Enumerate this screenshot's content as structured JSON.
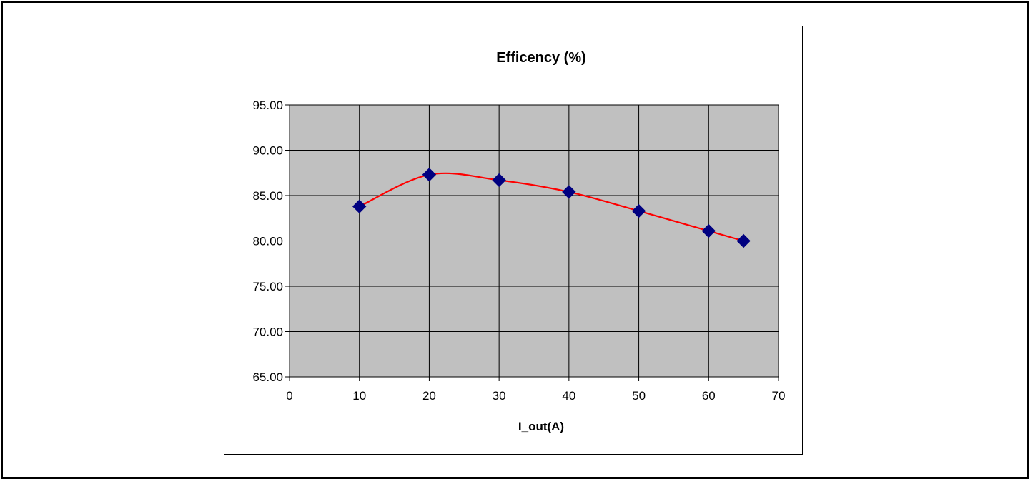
{
  "chart_data": {
    "type": "scatter",
    "title": "Efficency (%)",
    "xlabel": "I_out(A)",
    "ylabel": "",
    "xlim": [
      0,
      70
    ],
    "ylim": [
      65,
      95
    ],
    "x_ticks": [
      "0",
      "10",
      "20",
      "30",
      "40",
      "50",
      "60",
      "70"
    ],
    "y_ticks": [
      "95.00",
      "90.00",
      "85.00",
      "80.00",
      "75.00",
      "70.00",
      "65.00"
    ],
    "grid": true,
    "legend": "none",
    "series": [
      {
        "x": [
          10,
          20,
          30,
          40,
          50,
          60,
          65
        ],
        "y": [
          83.8,
          87.3,
          86.7,
          85.4,
          83.3,
          81.1,
          80.0
        ],
        "marker": "diamond",
        "marker_color": "#000080",
        "line": "smoothed",
        "line_color": "#ff0000"
      }
    ],
    "plot_background": "#c0c0c0",
    "grid_color": "#000000"
  }
}
